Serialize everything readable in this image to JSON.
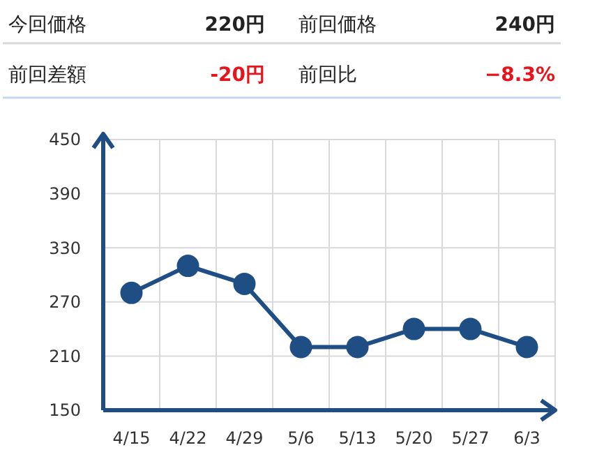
{
  "chart_data": [
    {
      "type": "other",
      "annotations": [
        "今回価格",
        "220円",
        "前回価格",
        "240円",
        "前回差額",
        "-20円",
        "前回比",
        "−8.3%"
      ]
    },
    {
      "type": "line",
      "categories": [
        "4/15",
        "4/22",
        "4/29",
        "5/6",
        "5/13",
        "5/20",
        "5/27",
        "6/3"
      ],
      "series": [
        {
          "color": "#1f4e85",
          "values": [
            280,
            310,
            290,
            220,
            220,
            240,
            240,
            220
          ]
        }
      ],
      "ylim": [
        150,
        450
      ],
      "yticks": [
        150,
        210,
        270,
        330,
        390,
        450
      ],
      "grid": true,
      "marker": "circle"
    }
  ]
}
